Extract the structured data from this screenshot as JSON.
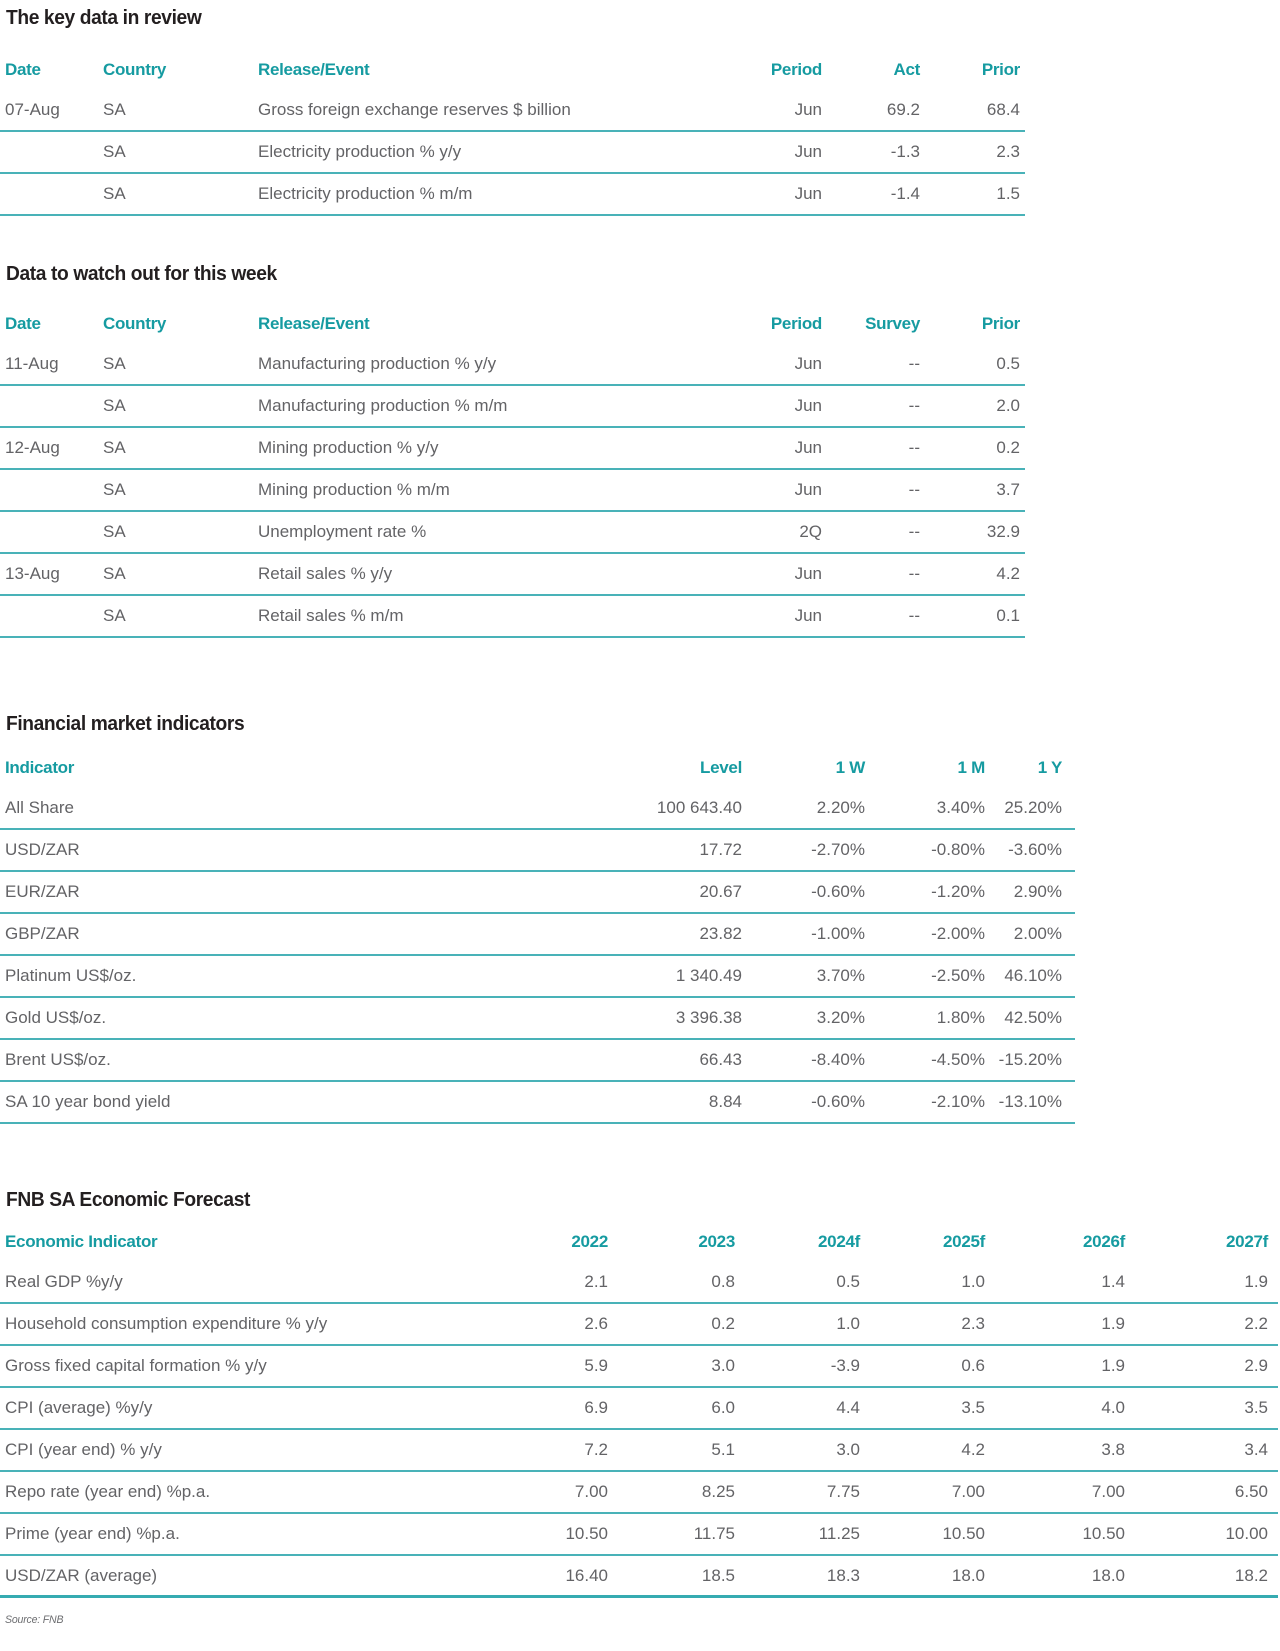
{
  "colors": {
    "accent_teal": "#169ba1",
    "rule_teal": "#49b2b8",
    "heading_black": "#231f20",
    "body_gray": "#636366"
  },
  "sections": {
    "key_data": {
      "title": "The key data in review",
      "headers": {
        "date": "Date",
        "country": "Country",
        "release": "Release/Event",
        "period": "Period",
        "act": "Act",
        "prior": "Prior"
      },
      "rows": [
        {
          "date": "07-Aug",
          "country": "SA",
          "release": "Gross foreign exchange reserves $ billion",
          "period": "Jun",
          "act": "69.2",
          "prior": "68.4"
        },
        {
          "date": "",
          "country": "SA",
          "release": "Electricity production % y/y",
          "period": "Jun",
          "act": "-1.3",
          "prior": "2.3"
        },
        {
          "date": "",
          "country": "SA",
          "release": "Electricity production % m/m",
          "period": "Jun",
          "act": "-1.4",
          "prior": "1.5"
        }
      ]
    },
    "watch": {
      "title": "Data to watch out for this week",
      "headers": {
        "date": "Date",
        "country": "Country",
        "release": "Release/Event",
        "period": "Period",
        "act": "Survey",
        "prior": "Prior"
      },
      "rows": [
        {
          "date": "11-Aug",
          "country": "SA",
          "release": "Manufacturing production % y/y",
          "period": "Jun",
          "act": "--",
          "prior": "0.5"
        },
        {
          "date": "",
          "country": "SA",
          "release": "Manufacturing production % m/m",
          "period": "Jun",
          "act": "--",
          "prior": "2.0"
        },
        {
          "date": "12-Aug",
          "country": "SA",
          "release": "Mining production % y/y",
          "period": "Jun",
          "act": "--",
          "prior": "0.2"
        },
        {
          "date": "",
          "country": "SA",
          "release": "Mining production % m/m",
          "period": "Jun",
          "act": "--",
          "prior": "3.7"
        },
        {
          "date": "",
          "country": "SA",
          "release": "Unemployment rate %",
          "period": "2Q",
          "act": "--",
          "prior": "32.9"
        },
        {
          "date": "13-Aug",
          "country": "SA",
          "release": "Retail sales % y/y",
          "period": "Jun",
          "act": "--",
          "prior": "4.2"
        },
        {
          "date": "",
          "country": "SA",
          "release": "Retail sales % m/m",
          "period": "Jun",
          "act": "--",
          "prior": "0.1"
        }
      ]
    },
    "market": {
      "title": "Financial market indicators",
      "headers": {
        "indicator": "Indicator",
        "level": "Level",
        "w1": "1 W",
        "m1": "1 M",
        "y1": "1 Y"
      },
      "rows": [
        {
          "indicator": "All Share",
          "level": "100 643.40",
          "w1": "2.20%",
          "m1": "3.40%",
          "y1": "25.20%"
        },
        {
          "indicator": "USD/ZAR",
          "level": "17.72",
          "w1": "-2.70%",
          "m1": "-0.80%",
          "y1": "-3.60%"
        },
        {
          "indicator": "EUR/ZAR",
          "level": "20.67",
          "w1": "-0.60%",
          "m1": "-1.20%",
          "y1": "2.90%"
        },
        {
          "indicator": "GBP/ZAR",
          "level": "23.82",
          "w1": "-1.00%",
          "m1": "-2.00%",
          "y1": "2.00%"
        },
        {
          "indicator": "Platinum US$/oz.",
          "level": "1 340.49",
          "w1": "3.70%",
          "m1": "-2.50%",
          "y1": "46.10%"
        },
        {
          "indicator": "Gold US$/oz.",
          "level": "3 396.38",
          "w1": "3.20%",
          "m1": "1.80%",
          "y1": "42.50%"
        },
        {
          "indicator": "Brent US$/oz.",
          "level": "66.43",
          "w1": "-8.40%",
          "m1": "-4.50%",
          "y1": "-15.20%"
        },
        {
          "indicator": "SA 10 year bond yield",
          "level": "8.84",
          "w1": "-0.60%",
          "m1": "-2.10%",
          "y1": "-13.10%"
        }
      ]
    },
    "forecast": {
      "title": "FNB SA Economic Forecast",
      "headers": {
        "indicator": "Economic Indicator",
        "y2022": "2022",
        "y2023": "2023",
        "y2024": "2024f",
        "y2025": "2025f",
        "y2026": "2026f",
        "y2027": "2027f"
      },
      "rows": [
        {
          "indicator": "Real GDP %y/y",
          "y2022": "2.1",
          "y2023": "0.8",
          "y2024": "0.5",
          "y2025": "1.0",
          "y2026": "1.4",
          "y2027": "1.9"
        },
        {
          "indicator": "Household consumption expenditure % y/y",
          "y2022": "2.6",
          "y2023": "0.2",
          "y2024": "1.0",
          "y2025": "2.3",
          "y2026": "1.9",
          "y2027": "2.2"
        },
        {
          "indicator": "Gross fixed capital formation % y/y",
          "y2022": "5.9",
          "y2023": "3.0",
          "y2024": "-3.9",
          "y2025": "0.6",
          "y2026": "1.9",
          "y2027": "2.9"
        },
        {
          "indicator": "CPI (average) %y/y",
          "y2022": "6.9",
          "y2023": "6.0",
          "y2024": "4.4",
          "y2025": "3.5",
          "y2026": "4.0",
          "y2027": "3.5"
        },
        {
          "indicator": "CPI (year end) % y/y",
          "y2022": "7.2",
          "y2023": "5.1",
          "y2024": "3.0",
          "y2025": "4.2",
          "y2026": "3.8",
          "y2027": "3.4"
        },
        {
          "indicator": "Repo rate (year end) %p.a.",
          "y2022": "7.00",
          "y2023": "8.25",
          "y2024": "7.75",
          "y2025": "7.00",
          "y2026": "7.00",
          "y2027": "6.50"
        },
        {
          "indicator": "Prime (year end) %p.a.",
          "y2022": "10.50",
          "y2023": "11.75",
          "y2024": "11.25",
          "y2025": "10.50",
          "y2026": "10.50",
          "y2027": "10.00"
        },
        {
          "indicator": "USD/ZAR (average)",
          "y2022": "16.40",
          "y2023": "18.5",
          "y2024": "18.3",
          "y2025": "18.0",
          "y2026": "18.0",
          "y2027": "18.2"
        }
      ]
    }
  },
  "source_note": "Source: FNB"
}
